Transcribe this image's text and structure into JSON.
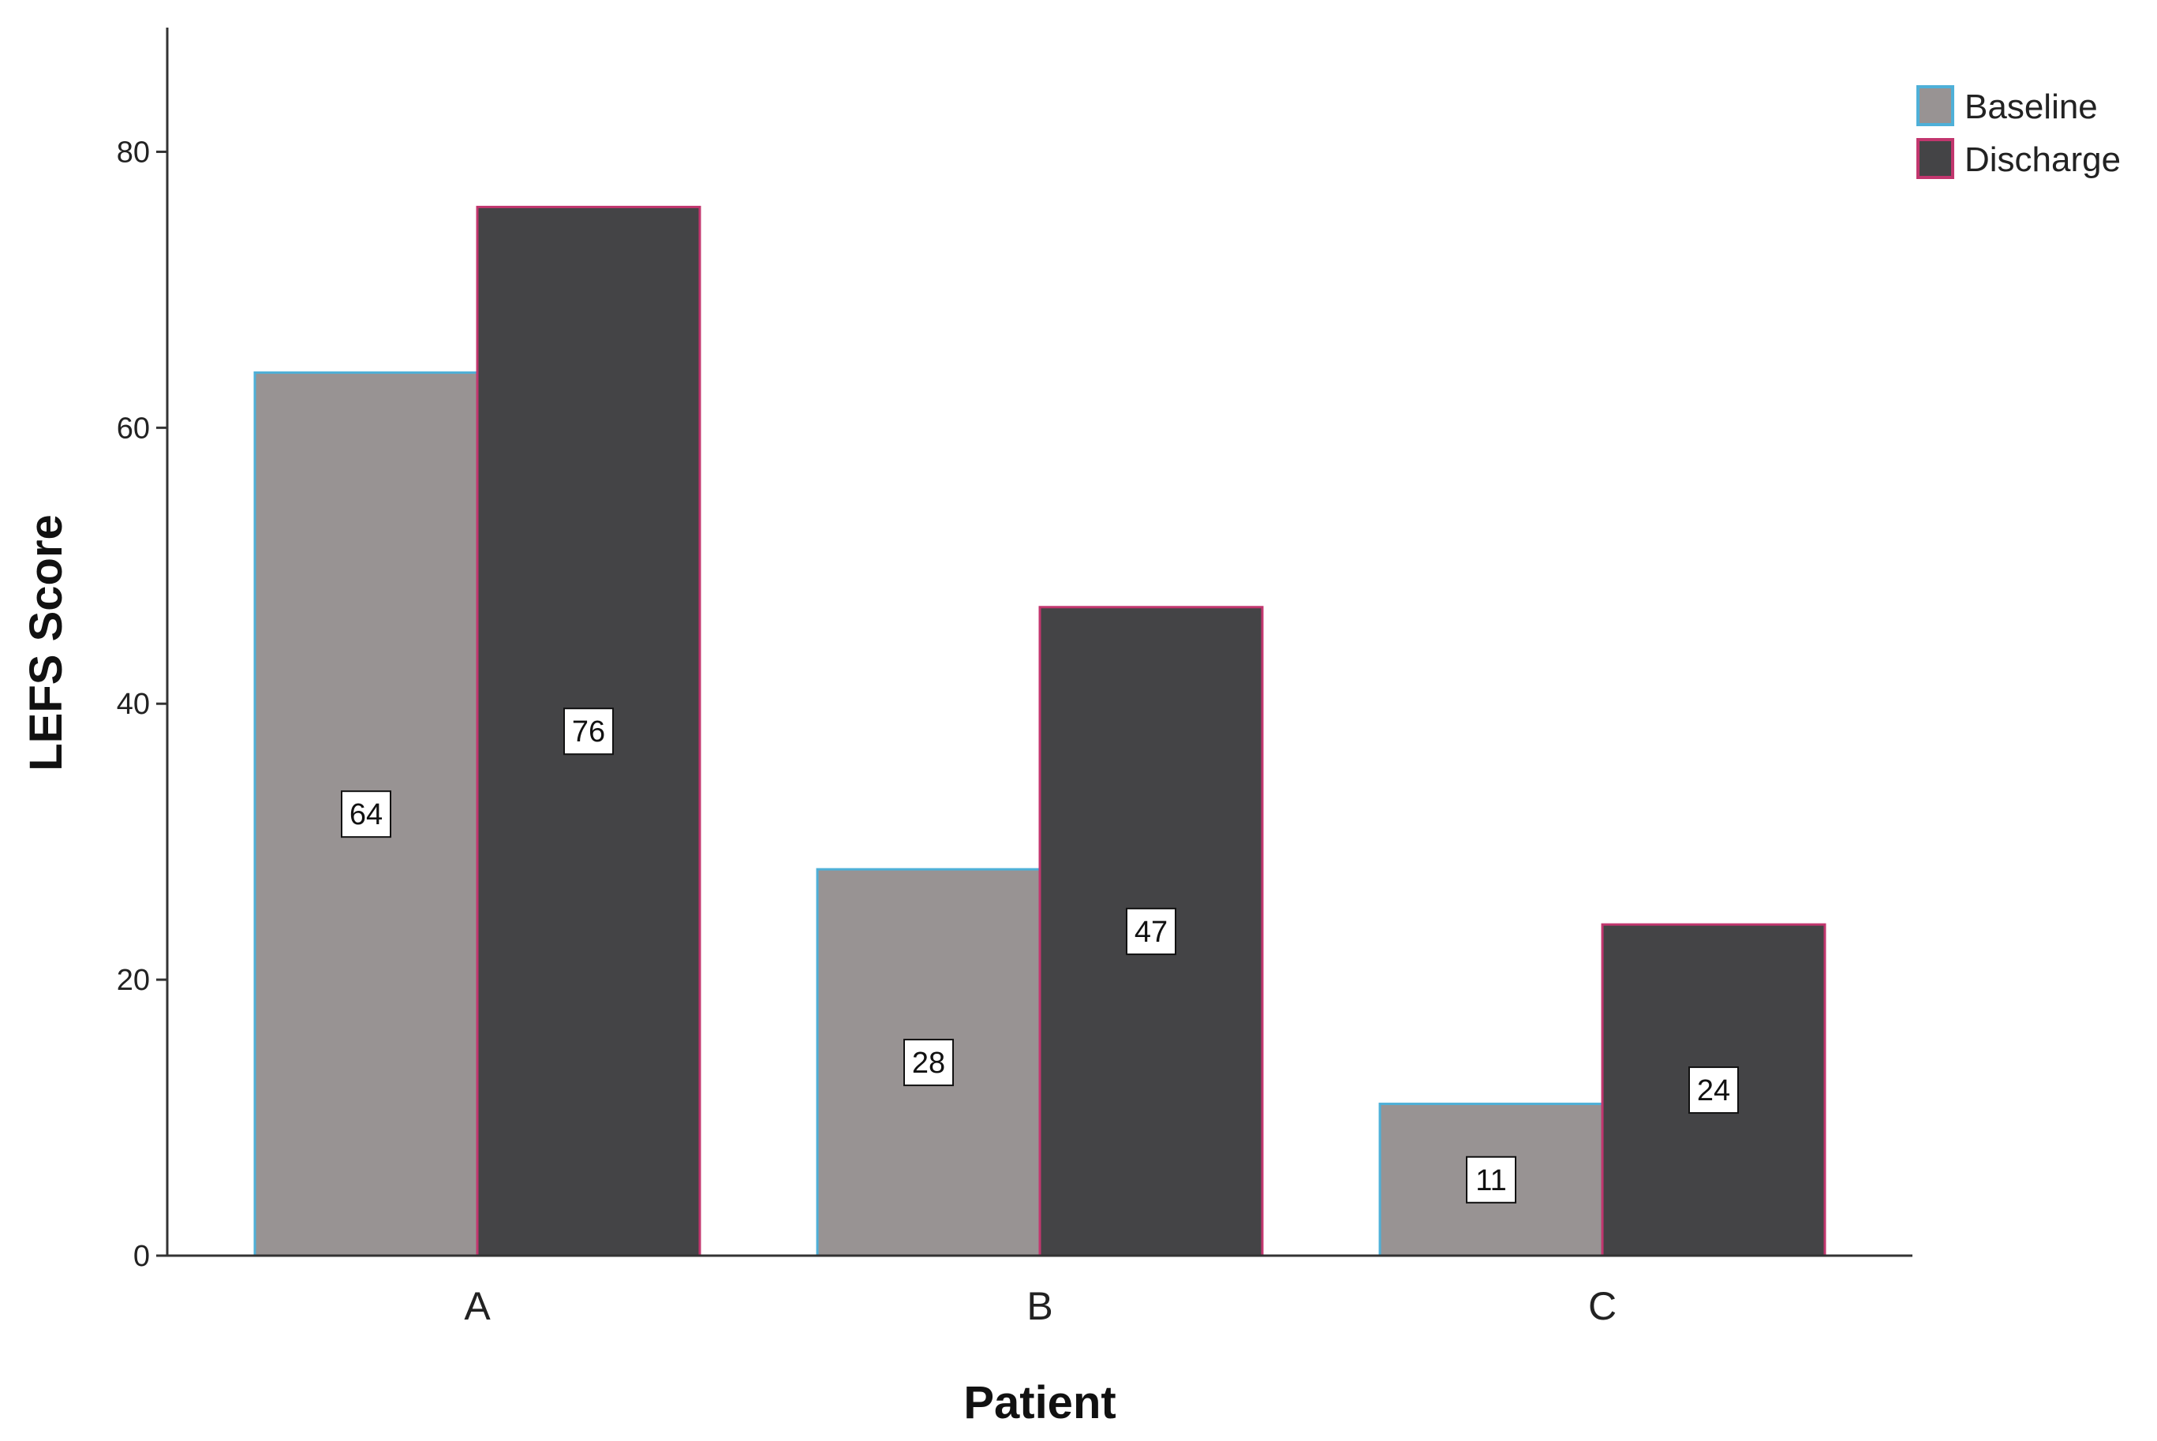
{
  "chart_data": {
    "type": "bar",
    "categories": [
      "A",
      "B",
      "C"
    ],
    "series": [
      {
        "name": "Baseline",
        "values": [
          64,
          28,
          11
        ],
        "color": "#989393",
        "edge": "#4eb0d8"
      },
      {
        "name": "Discharge",
        "values": [
          76,
          47,
          24
        ],
        "color": "#444446",
        "edge": "#c2366e"
      }
    ],
    "xlabel": "Patient",
    "ylabel": "LEFS Score",
    "yticks": [
      "0",
      "20",
      "40",
      "60",
      "80"
    ],
    "ylim": [
      0,
      89
    ],
    "grid": false,
    "legend": "top-right",
    "data_labels": true
  }
}
